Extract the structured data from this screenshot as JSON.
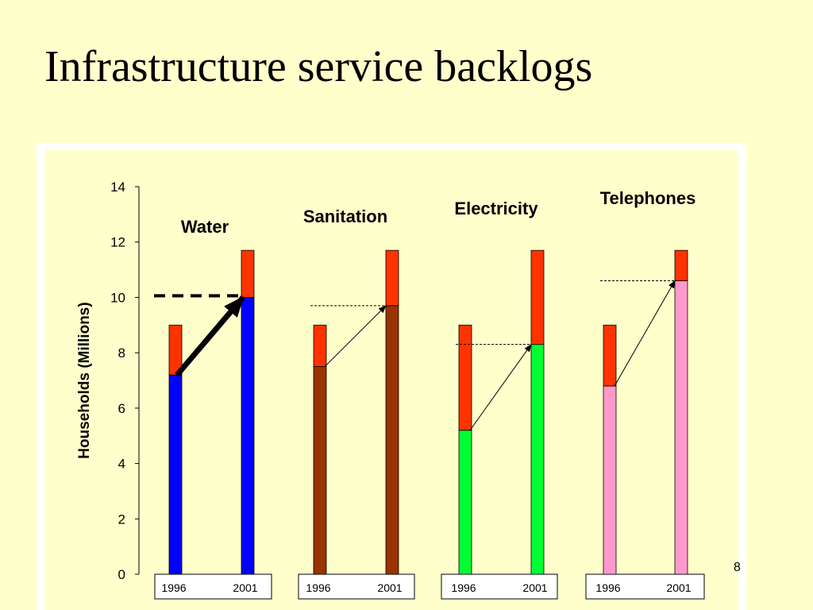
{
  "slide": {
    "title": "Infrastructure service backlogs",
    "page_number": "8"
  },
  "chart_data": {
    "type": "bar",
    "stacking": "stacked",
    "ylabel": "Households (Millions)",
    "ylim": [
      0,
      14
    ],
    "yticks": [
      0,
      2,
      4,
      6,
      8,
      10,
      12,
      14
    ],
    "groups": [
      {
        "name": "Water",
        "categories": [
          "1996",
          "2001"
        ],
        "served": [
          7.2,
          10.0
        ],
        "backlog": [
          1.8,
          1.7
        ],
        "served_color": "#0000ff",
        "arrow_style": "bold",
        "dashed_guide": "bold"
      },
      {
        "name": "Sanitation",
        "categories": [
          "1996",
          "2001"
        ],
        "served": [
          7.5,
          9.7
        ],
        "backlog": [
          1.5,
          2.0
        ],
        "served_color": "#993300",
        "arrow_style": "thin",
        "dashed_guide": "thin"
      },
      {
        "name": "Electricity",
        "categories": [
          "1996",
          "2001"
        ],
        "served": [
          5.2,
          8.3
        ],
        "backlog": [
          3.8,
          3.4
        ],
        "served_color": "#00ff33",
        "arrow_style": "thin",
        "dashed_guide": "thin"
      },
      {
        "name": "Telephones",
        "categories": [
          "1996",
          "2001"
        ],
        "served": [
          6.8,
          10.6
        ],
        "backlog": [
          2.2,
          1.1
        ],
        "served_color": "#ff99cc",
        "arrow_style": "thin",
        "dashed_guide": "thin"
      }
    ],
    "backlog_color": "#ff3300"
  }
}
